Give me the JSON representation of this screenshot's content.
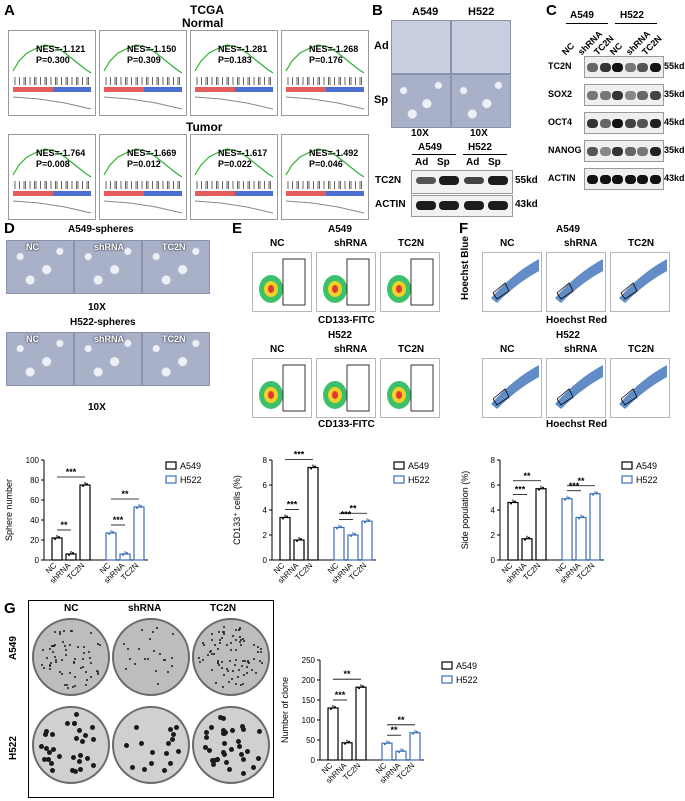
{
  "panelA": {
    "letter": "A",
    "title": "TCGA",
    "normal_label": "Normal",
    "tumor_label": "Tumor",
    "normal": [
      {
        "nes": "NES=-1.121",
        "p": "P=0.300"
      },
      {
        "nes": "NES=-1.150",
        "p": "P=0.309"
      },
      {
        "nes": "NES=-1.281",
        "p": "P=0.183"
      },
      {
        "nes": "NES=-1.268",
        "p": "P=0.176"
      }
    ],
    "tumor": [
      {
        "nes": "NES=-1.764",
        "p": "P=0.008"
      },
      {
        "nes": "NES=-1.669",
        "p": "P=0.012"
      },
      {
        "nes": "NES=-1.617",
        "p": "P=0.022"
      },
      {
        "nes": "NES=-1.492",
        "p": "P=0.046"
      }
    ]
  },
  "panelB": {
    "letter": "B",
    "cols": [
      "A549",
      "H522"
    ],
    "rows": [
      "Ad",
      "Sp"
    ],
    "mag": [
      "10X",
      "10X"
    ],
    "blot_header": [
      "A549",
      "H522"
    ],
    "blot_sub": [
      "Ad",
      "Sp",
      "Ad",
      "Sp"
    ],
    "bands": [
      {
        "name": "TC2N",
        "kd": "55kd"
      },
      {
        "name": "ACTIN",
        "kd": "43kd"
      }
    ]
  },
  "panelC": {
    "letter": "C",
    "header": [
      "A549",
      "H522"
    ],
    "lanes": [
      "NC",
      "shRNA",
      "TC2N",
      "NC",
      "shRNA",
      "TC2N"
    ],
    "bands": [
      {
        "name": "TC2N",
        "kd": "55kd"
      },
      {
        "name": "SOX2",
        "kd": "35kd"
      },
      {
        "name": "OCT4",
        "kd": "45kd"
      },
      {
        "name": "NANOG",
        "kd": "35kd"
      },
      {
        "name": "ACTIN",
        "kd": "43kd"
      }
    ]
  },
  "panelD": {
    "letter": "D",
    "title1": "A549-spheres",
    "title2": "H522-spheres",
    "cols": [
      "NC",
      "shRNA",
      "TC2N"
    ],
    "mag": "10X"
  },
  "panelE": {
    "letter": "E",
    "title1": "A549",
    "title2": "H522",
    "cols": [
      "NC",
      "shRNA",
      "TC2N"
    ],
    "xlabel": "CD133-FITC"
  },
  "panelF": {
    "letter": "F",
    "title1": "A549",
    "title2": "H522",
    "cols": [
      "NC",
      "shRNA",
      "TC2N"
    ],
    "xlabel": "Hoechst Red",
    "ylabel": "Hoechst Blue"
  },
  "panelG": {
    "letter": "G",
    "cols": [
      "NC",
      "shRNA",
      "TC2N"
    ],
    "rows": [
      "A549",
      "H522"
    ]
  },
  "colors": {
    "a549": "#000000",
    "h522": "#3c6fb6"
  },
  "chart_data": [
    {
      "id": "D",
      "type": "bar",
      "ylabel": "Sphere number",
      "ylim": [
        0,
        100
      ],
      "yticks": [
        0,
        20,
        40,
        60,
        80,
        100
      ],
      "categories": [
        "NC",
        "shRNA",
        "TC2N"
      ],
      "series": [
        {
          "name": "A549",
          "values": [
            22,
            6,
            75
          ]
        },
        {
          "name": "H522",
          "values": [
            27,
            6,
            53
          ]
        }
      ],
      "sig": [
        {
          "group": 0,
          "from": 0,
          "to": 1,
          "label": "**"
        },
        {
          "group": 0,
          "from": 0,
          "to": 2,
          "label": "***"
        },
        {
          "group": 1,
          "from": 0,
          "to": 1,
          "label": "***"
        },
        {
          "group": 1,
          "from": 0,
          "to": 2,
          "label": "**"
        }
      ]
    },
    {
      "id": "E",
      "type": "bar",
      "ylabel": "CD133⁺ cells (%)",
      "ylim": [
        0,
        8
      ],
      "yticks": [
        0,
        2,
        4,
        6,
        8
      ],
      "categories": [
        "NC",
        "shRNA",
        "TC2N"
      ],
      "series": [
        {
          "name": "A549",
          "values": [
            3.4,
            1.6,
            7.4
          ]
        },
        {
          "name": "H522",
          "values": [
            2.6,
            2.0,
            3.1
          ]
        }
      ],
      "sig": [
        {
          "group": 0,
          "from": 0,
          "to": 1,
          "label": "***"
        },
        {
          "group": 0,
          "from": 0,
          "to": 2,
          "label": "***"
        },
        {
          "group": 1,
          "from": 0,
          "to": 1,
          "label": "***"
        },
        {
          "group": 1,
          "from": 0,
          "to": 2,
          "label": "**"
        }
      ]
    },
    {
      "id": "F",
      "type": "bar",
      "ylabel": "Side population (%)",
      "ylim": [
        0,
        8
      ],
      "yticks": [
        0,
        2,
        4,
        6,
        8
      ],
      "categories": [
        "NC",
        "shRNA",
        "TC2N"
      ],
      "series": [
        {
          "name": "A549",
          "values": [
            4.6,
            1.7,
            5.7
          ]
        },
        {
          "name": "H522",
          "values": [
            4.9,
            3.4,
            5.3
          ]
        }
      ],
      "sig": [
        {
          "group": 0,
          "from": 0,
          "to": 1,
          "label": "***"
        },
        {
          "group": 0,
          "from": 0,
          "to": 2,
          "label": "**"
        },
        {
          "group": 1,
          "from": 0,
          "to": 1,
          "label": "***"
        },
        {
          "group": 1,
          "from": 0,
          "to": 2,
          "label": "**"
        }
      ]
    },
    {
      "id": "G",
      "type": "bar",
      "ylabel": "Number of clone",
      "ylim": [
        0,
        250
      ],
      "yticks": [
        0,
        50,
        100,
        150,
        200,
        250
      ],
      "categories": [
        "NC",
        "shRNA",
        "TC2N"
      ],
      "series": [
        {
          "name": "A549",
          "values": [
            130,
            43,
            182
          ]
        },
        {
          "name": "H522",
          "values": [
            42,
            22,
            68
          ]
        }
      ],
      "sig": [
        {
          "group": 0,
          "from": 0,
          "to": 1,
          "label": "***"
        },
        {
          "group": 0,
          "from": 0,
          "to": 2,
          "label": "**"
        },
        {
          "group": 1,
          "from": 0,
          "to": 1,
          "label": "**"
        },
        {
          "group": 1,
          "from": 0,
          "to": 2,
          "label": "**"
        }
      ]
    }
  ]
}
